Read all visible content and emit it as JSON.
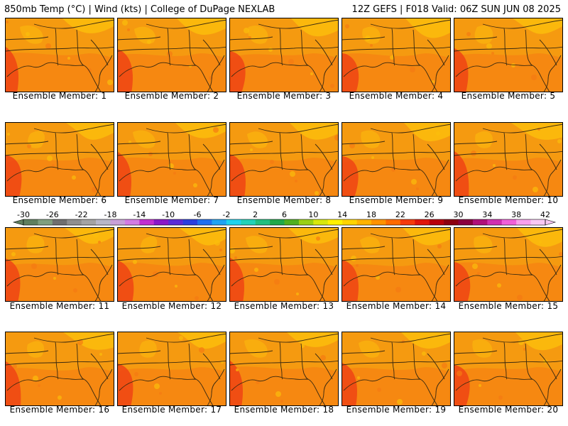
{
  "header": {
    "left": "850mb Temp (°C) | Wind (kts) | College of DuPage NEXLAB",
    "right": "12Z GEFS | F018 Valid: 06Z SUN JUN 08 2025"
  },
  "panels": [
    {
      "label": "Ensemble Member: 1"
    },
    {
      "label": "Ensemble Member: 2"
    },
    {
      "label": "Ensemble Member: 3"
    },
    {
      "label": "Ensemble Member: 4"
    },
    {
      "label": "Ensemble Member: 5"
    },
    {
      "label": "Ensemble Member: 6"
    },
    {
      "label": "Ensemble Member: 7"
    },
    {
      "label": "Ensemble Member: 8"
    },
    {
      "label": "Ensemble Member: 9"
    },
    {
      "label": "Ensemble Member: 10"
    },
    {
      "label": "Ensemble Member: 11"
    },
    {
      "label": "Ensemble Member: 12"
    },
    {
      "label": "Ensemble Member: 13"
    },
    {
      "label": "Ensemble Member: 14"
    },
    {
      "label": "Ensemble Member: 15"
    },
    {
      "label": "Ensemble Member: 16"
    },
    {
      "label": "Ensemble Member: 17"
    },
    {
      "label": "Ensemble Member: 18"
    },
    {
      "label": "Ensemble Member: 19"
    },
    {
      "label": "Ensemble Member: 20"
    }
  ],
  "colorbar": {
    "ticks": [
      "-30",
      "-26",
      "-22",
      "-18",
      "-14",
      "-10",
      "-6",
      "-2",
      "2",
      "6",
      "10",
      "14",
      "18",
      "22",
      "26",
      "30",
      "34",
      "38",
      "42"
    ],
    "colors": [
      "#5f7f5f",
      "#7f9f7f",
      "#6f6f6f",
      "#8f8f8f",
      "#a3a3a3",
      "#b7b7c7",
      "#c8a0d8",
      "#d37be4",
      "#c12fd0",
      "#8a18c8",
      "#5a2bd8",
      "#2a3fe0",
      "#1f6ff0",
      "#1fa3f3",
      "#1fd3ee",
      "#20d2b8",
      "#20bf80",
      "#20a84a",
      "#50b020",
      "#9ad016",
      "#d8e80c",
      "#fff100",
      "#ffd400",
      "#ffb300",
      "#ff9200",
      "#ff6a00",
      "#f53a0c",
      "#e0140c",
      "#b8000c",
      "#8c0010",
      "#8a0040",
      "#b0107a",
      "#d030b0",
      "#f060d8",
      "#f8a0ec",
      "#f8c8f4"
    ]
  },
  "palette": {
    "base": "#f59a10",
    "yellow": "#fbbd0c",
    "darkorange": "#f57a12",
    "red": "#ee4414",
    "lines": "#3a2a10"
  }
}
